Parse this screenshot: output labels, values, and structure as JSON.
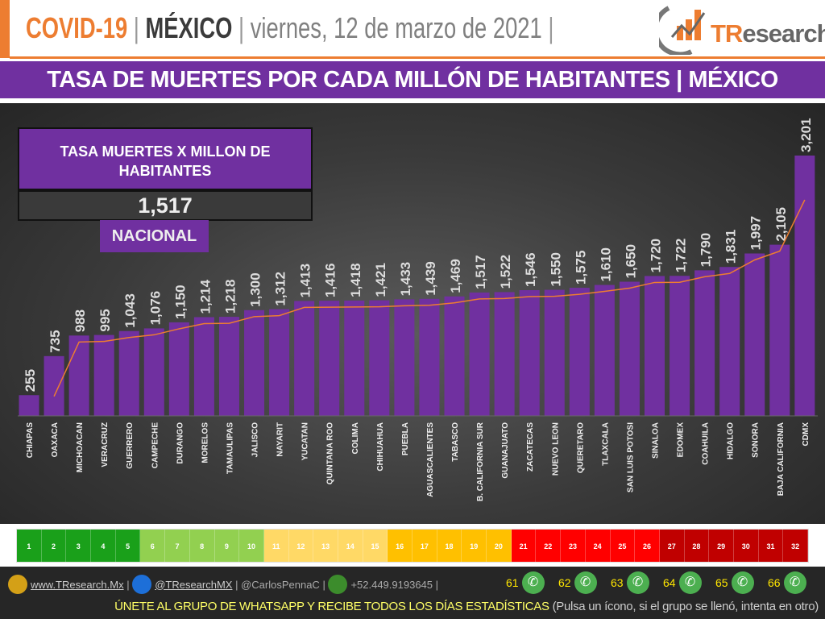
{
  "header": {
    "covid": "COVID-19",
    "sep1": " | ",
    "country": "MÉXICO",
    "sep2": " | ",
    "date": "viernes, 12 de marzo de 2021",
    "sep3": " |",
    "logo_text_t": "TR",
    "logo_text_rest": "esearch"
  },
  "band_title": "TASA DE MUERTES POR CADA MILLÓN DE HABITANTES | MÉXICO",
  "summary": {
    "label": "TASA MUERTES X MILLON DE HABITANTES",
    "value": "1,517",
    "scope": "NACIONAL"
  },
  "colors": {
    "bar": "#7030a0",
    "trend": "#ed7d31",
    "accent": "#ed7d31",
    "band": "#7030a0"
  },
  "chart_data": {
    "type": "bar",
    "title": "TASA DE MUERTES POR CADA MILLÓN DE HABITANTES | MÉXICO",
    "categories": [
      "CHIAPAS",
      "OAXACA",
      "MICHOACAN",
      "VERACRUZ",
      "GUERRERO",
      "CAMPECHE",
      "DURANGO",
      "MORELOS",
      "TAMAULIPAS",
      "JALISCO",
      "NAYARIT",
      "YUCATAN",
      "QUINTANA ROO",
      "COLIMA",
      "CHIHUAHUA",
      "PUEBLA",
      "AGUASCALIENTES",
      "TABASCO",
      "B. CALIFORNIA SUR",
      "GUANAJUATO",
      "ZACATECAS",
      "NUEVO LEON",
      "QUERETARO",
      "TLAXCALA",
      "SAN LUIS POTOSI",
      "SINALOA",
      "EDOMEX",
      "COAHUILA",
      "HIDALGO",
      "SONORA",
      "BAJA CALIFORNIA",
      "CDMX"
    ],
    "values": [
      255,
      735,
      988,
      995,
      1043,
      1076,
      1150,
      1214,
      1218,
      1300,
      1312,
      1413,
      1416,
      1418,
      1421,
      1433,
      1439,
      1469,
      1517,
      1522,
      1546,
      1550,
      1575,
      1610,
      1650,
      1720,
      1722,
      1790,
      1831,
      1997,
      2105,
      3201
    ],
    "ylim": [
      0,
      3300
    ],
    "grid": false,
    "trendline": true,
    "data_labels": true
  },
  "scale": {
    "labels": [
      "1",
      "2",
      "3",
      "4",
      "5",
      "6",
      "7",
      "8",
      "9",
      "10",
      "11",
      "12",
      "13",
      "14",
      "15",
      "16",
      "17",
      "18",
      "19",
      "20",
      "21",
      "22",
      "23",
      "24",
      "25",
      "26",
      "27",
      "28",
      "29",
      "30",
      "31",
      "32"
    ],
    "colors": [
      "#1aa01a",
      "#1aa01a",
      "#1aa01a",
      "#1aa01a",
      "#1aa01a",
      "#92d050",
      "#92d050",
      "#92d050",
      "#92d050",
      "#92d050",
      "#ffd966",
      "#ffd966",
      "#ffd966",
      "#ffd966",
      "#ffd966",
      "#ffc000",
      "#ffc000",
      "#ffc000",
      "#ffc000",
      "#ffc000",
      "#ff0000",
      "#ff0000",
      "#ff0000",
      "#ff0000",
      "#ff0000",
      "#ff0000",
      "#c00000",
      "#c00000",
      "#c00000",
      "#c00000",
      "#c00000",
      "#c00000"
    ]
  },
  "footer": {
    "web": "www.TResearch.Mx",
    "twitter": "@TResearchMX",
    "handle": "@CarlosPennaC",
    "phone": "+52.449.9193645",
    "groups": [
      "61",
      "62",
      "63",
      "64",
      "65",
      "66"
    ],
    "cta": "ÚNETE AL GRUPO DE WHATSAPP Y RECIBE TODOS LOS DÍAS ESTADÍSTICAS",
    "note": "(Pulsa un ícono, si el grupo se llenó, intenta en otro)"
  }
}
